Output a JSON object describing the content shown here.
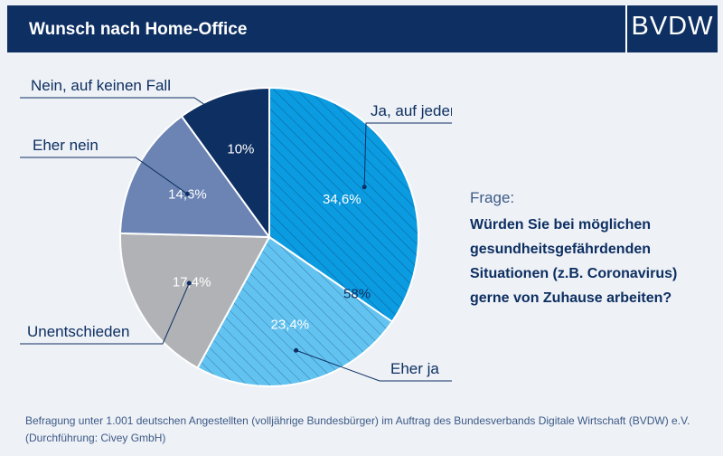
{
  "header": {
    "title": "Wunsch nach Home-Office",
    "logo": "BVDW"
  },
  "question": {
    "caption": "Frage:",
    "text": "Würden Sie bei möglichen gesundheitsgefährdenden Situationen (z.B. Coronavirus) gerne von Zuhause arbeiten?"
  },
  "footnote": "Befragung unter 1.001 deutschen Angestellten (volljährige Bundesbürger) im Auftrag des Bundesverbands Digitale Wirtschaft (BVDW) e.V. (Durchführung: Civey GmbH)",
  "colors": {
    "navy": "#0d2f62",
    "ja_auf_jeden_fall": "#0a9be0",
    "eher_ja": "#63c3f0",
    "unentschieden": "#b0b2b5",
    "eher_nein": "#6b84b4",
    "nein_auf_keinen_fall": "#0d2f62"
  },
  "chart_data": {
    "type": "pie",
    "title": "Wunsch nach Home-Office",
    "slices": [
      {
        "label": "Ja, auf jeden Fall",
        "value": 34.6,
        "value_label": "34,6%",
        "color": "#0a9be0",
        "hatched": true
      },
      {
        "label": "Eher ja",
        "value": 23.4,
        "value_label": "23,4%",
        "color": "#63c3f0",
        "hatched": true
      },
      {
        "label": "Unentschieden",
        "value": 17.4,
        "value_label": "17,4%",
        "color": "#b0b2b5",
        "hatched": false
      },
      {
        "label": "Eher nein",
        "value": 14.6,
        "value_label": "14,6%",
        "color": "#6b84b4",
        "hatched": false
      },
      {
        "label": "Nein, auf keinen Fall",
        "value": 10,
        "value_label": "10%",
        "color": "#0d2f62",
        "hatched": false
      }
    ],
    "annotations": [
      {
        "text": "58%",
        "note": "Ja, auf jeden Fall + Eher ja"
      }
    ]
  }
}
